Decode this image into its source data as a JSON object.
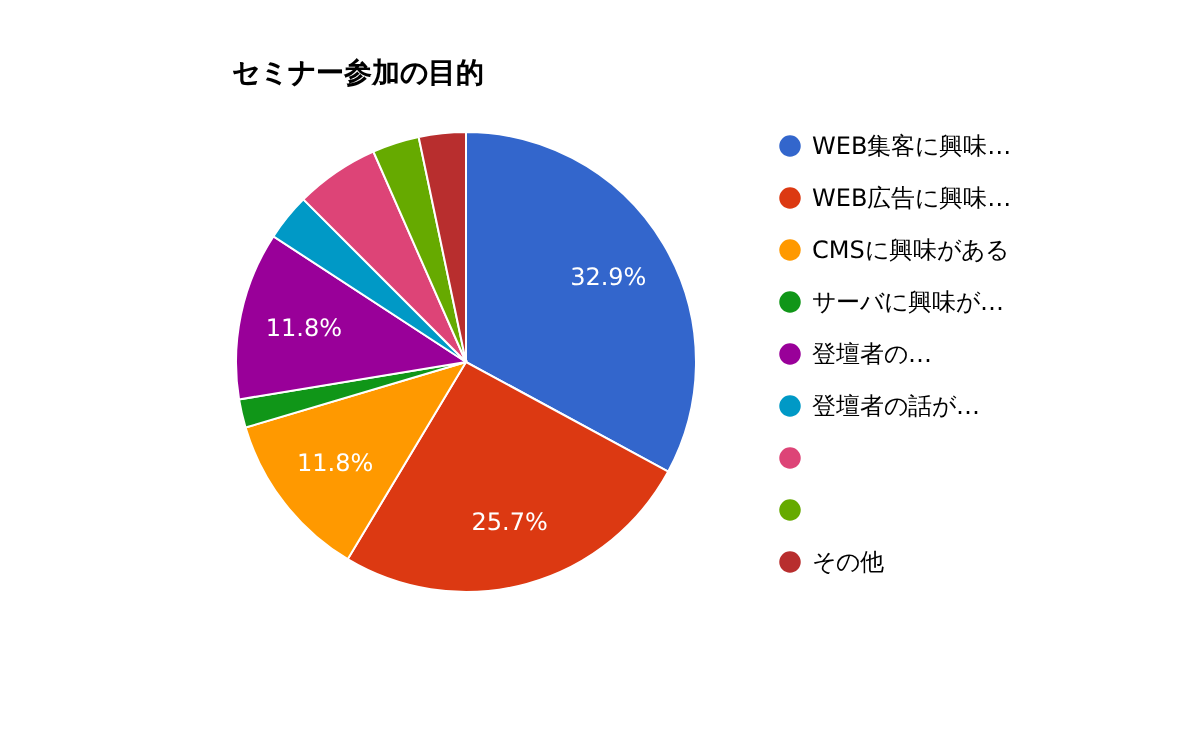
{
  "chart_data": {
    "type": "pie",
    "title": "セミナー参加の目的",
    "categories": [
      "WEB集客に興味…",
      "WEB広告に興味…",
      "CMSに興味がある",
      "サーバに興味が…",
      "登壇者の…",
      "登壇者の話が…",
      null,
      null,
      "その他"
    ],
    "values": [
      32.9,
      25.7,
      11.8,
      2.0,
      11.8,
      3.3,
      5.9,
      3.3,
      3.3
    ],
    "colors": [
      "#3366cc",
      "#dc3912",
      "#ff9900",
      "#109618",
      "#990099",
      "#0099c6",
      "#dd4477",
      "#66aa00",
      "#b82e2e"
    ],
    "value_labels": [
      "32.9%",
      "25.7%",
      "11.8%",
      null,
      "11.8%",
      null,
      null,
      null,
      null
    ],
    "legend": "right"
  }
}
